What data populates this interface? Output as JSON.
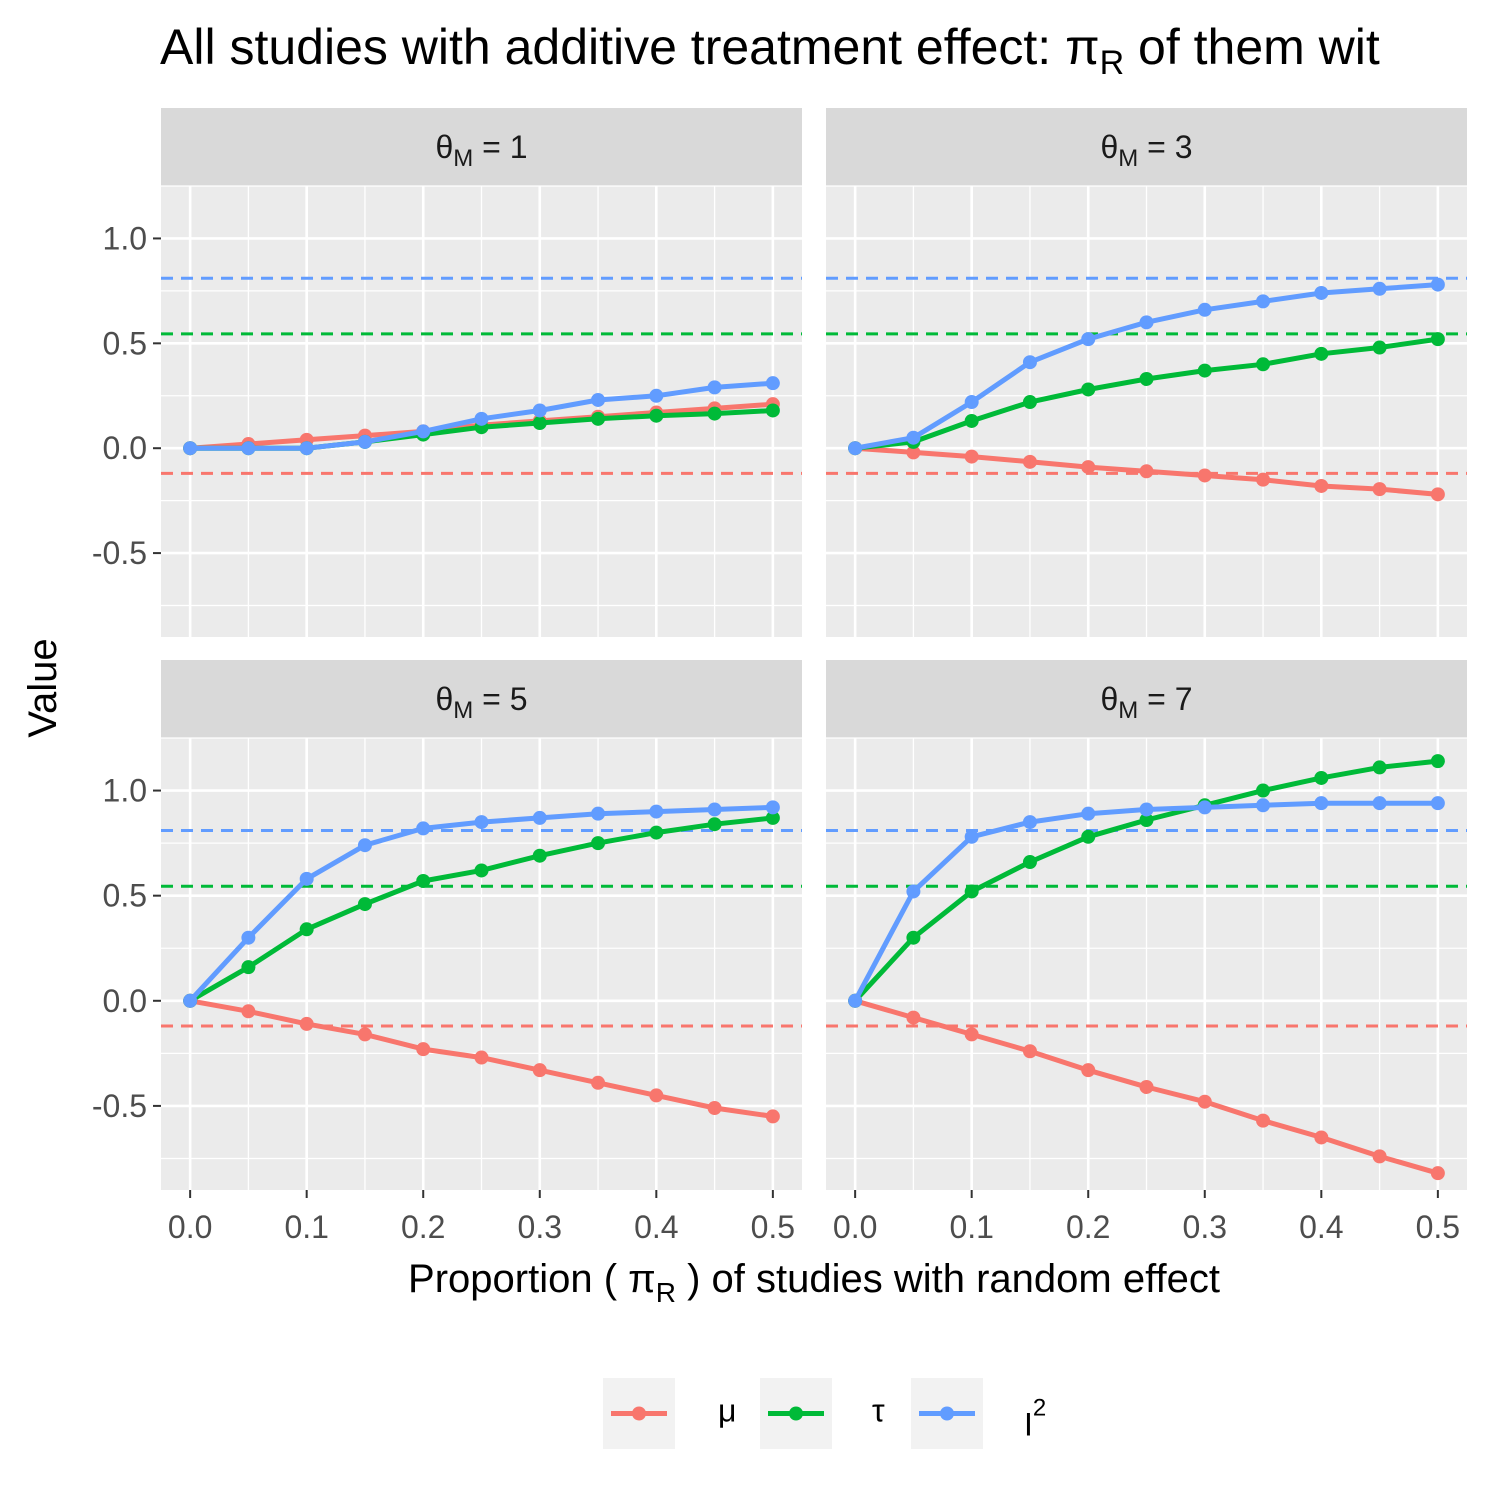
{
  "chart_data": {
    "type": "line",
    "title_main": "All studies with additive treatment effect: ",
    "title_sym": "π",
    "title_sub": "R",
    "title_rest": " of them wit",
    "xlabel_pre": "Proportion ( ",
    "xlabel_sym": "π",
    "xlabel_sub": "R",
    "xlabel_post": " ) of studies with random effect",
    "ylabel": "Value",
    "x": [
      0,
      0.05,
      0.1,
      0.15,
      0.2,
      0.25,
      0.3,
      0.35,
      0.4,
      0.45,
      0.5
    ],
    "xlim": [
      -0.025,
      0.525
    ],
    "ylim": [
      -0.9,
      1.25
    ],
    "x_ticks": [
      "0.0",
      "0.1",
      "0.2",
      "0.3",
      "0.4",
      "0.5"
    ],
    "x_tick_values": [
      0,
      0.1,
      0.2,
      0.3,
      0.4,
      0.5
    ],
    "y_ticks": [
      "1.0",
      "0.5",
      "0.0",
      "-0.5"
    ],
    "y_tick_values": [
      1.0,
      0.5,
      0.0,
      -0.5
    ],
    "colors": {
      "mu": "#F8766D",
      "tau": "#00BA38",
      "I2": "#619CFF",
      "panel_bg": "#EBEBEB",
      "strip_bg": "#D9D9D9",
      "grid": "#FFFFFF"
    },
    "reference_lines": {
      "mu": -0.12,
      "tau": 0.545,
      "I2": 0.81
    },
    "panels": [
      {
        "strip_sym": "θ",
        "strip_sub": "M",
        "strip_rest": " = 1",
        "series": {
          "mu": [
            0,
            0.02,
            0.04,
            0.06,
            0.08,
            0.11,
            0.13,
            0.15,
            0.17,
            0.19,
            0.21
          ],
          "tau": [
            0,
            0.0,
            0.0,
            0.03,
            0.065,
            0.1,
            0.12,
            0.14,
            0.155,
            0.165,
            0.18
          ],
          "I2": [
            0,
            0.0,
            0.0,
            0.03,
            0.08,
            0.14,
            0.18,
            0.23,
            0.25,
            0.29,
            0.31
          ]
        }
      },
      {
        "strip_sym": "θ",
        "strip_sub": "M",
        "strip_rest": " = 3",
        "series": {
          "mu": [
            0,
            -0.02,
            -0.04,
            -0.065,
            -0.09,
            -0.11,
            -0.13,
            -0.15,
            -0.18,
            -0.195,
            -0.22
          ],
          "tau": [
            0,
            0.03,
            0.13,
            0.22,
            0.28,
            0.33,
            0.37,
            0.4,
            0.45,
            0.48,
            0.52
          ],
          "I2": [
            0,
            0.05,
            0.22,
            0.41,
            0.52,
            0.6,
            0.66,
            0.7,
            0.74,
            0.76,
            0.78
          ]
        }
      },
      {
        "strip_sym": "θ",
        "strip_sub": "M",
        "strip_rest": " = 5",
        "series": {
          "mu": [
            0,
            -0.05,
            -0.11,
            -0.16,
            -0.23,
            -0.27,
            -0.33,
            -0.39,
            -0.45,
            -0.51,
            -0.55
          ],
          "tau": [
            0,
            0.16,
            0.34,
            0.46,
            0.57,
            0.62,
            0.69,
            0.75,
            0.8,
            0.84,
            0.87
          ],
          "I2": [
            0,
            0.3,
            0.58,
            0.74,
            0.82,
            0.85,
            0.87,
            0.89,
            0.9,
            0.91,
            0.92
          ]
        }
      },
      {
        "strip_sym": "θ",
        "strip_sub": "M",
        "strip_rest": " = 7",
        "series": {
          "mu": [
            0,
            -0.08,
            -0.16,
            -0.24,
            -0.33,
            -0.41,
            -0.48,
            -0.57,
            -0.65,
            -0.74,
            -0.82
          ],
          "tau": [
            0,
            0.3,
            0.52,
            0.66,
            0.78,
            0.86,
            0.93,
            1.0,
            1.06,
            1.11,
            1.14
          ],
          "I2": [
            0,
            0.52,
            0.78,
            0.85,
            0.89,
            0.91,
            0.92,
            0.93,
            0.94,
            0.94,
            0.94
          ]
        }
      }
    ],
    "legend": [
      {
        "key": "mu",
        "label": "μ",
        "sup": ""
      },
      {
        "key": "tau",
        "label": "τ",
        "sup": ""
      },
      {
        "key": "I2",
        "label": "I",
        "sup": "2"
      }
    ],
    "legend_position": "bottom"
  }
}
